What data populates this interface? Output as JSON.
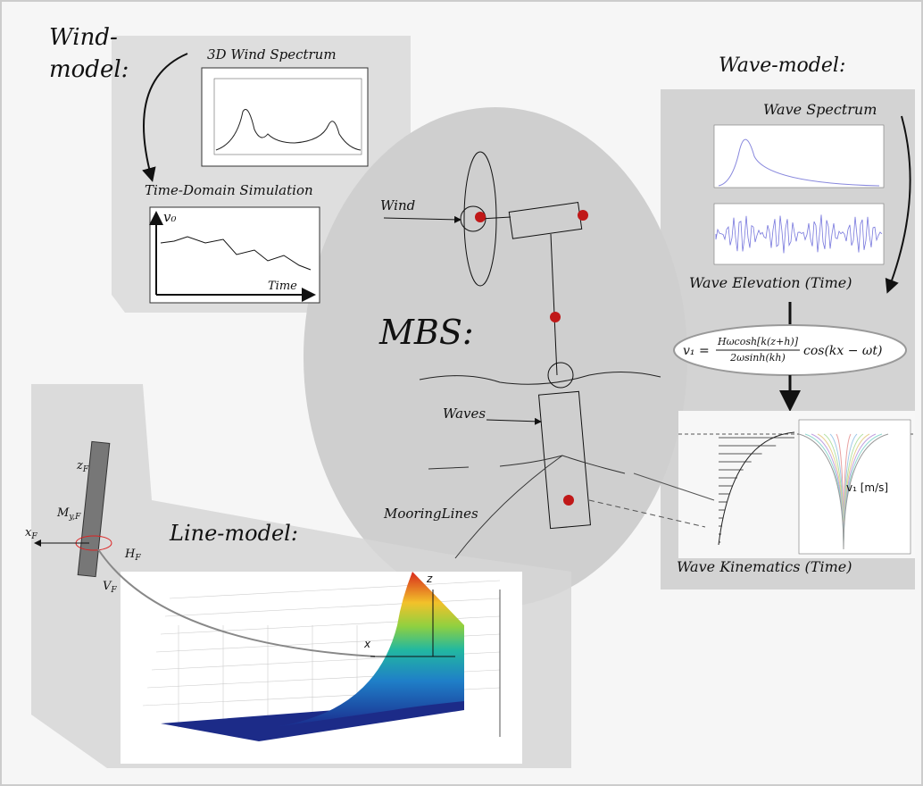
{
  "wind_model": {
    "title_lines": [
      "Wind-",
      "model:"
    ],
    "spectrum_title": "3D Wind Spectrum",
    "time_domain_title": "Time-Domain Simulation",
    "plot_y_label": "v₀",
    "plot_x_label": "Time"
  },
  "wave_model": {
    "title": "Wave-model:",
    "spectrum_title": "Wave Spectrum",
    "elevation_title": "Wave Elevation (Time)",
    "formula": {
      "lhs": "v₁ =",
      "numerator": "Hωcosh[k(z+h)]",
      "denominator": "2ωsinh(kh)",
      "tail": "cos(kx − ωt)"
    },
    "kinematics_title": "Wave Kinematics (Time)",
    "kinematics_axis_label": "v₁ [m/s]"
  },
  "mbs": {
    "title": "MBS:",
    "labels": [
      "Wind",
      "Waves",
      "MooringLines"
    ]
  },
  "line_model": {
    "title": "Line-model:",
    "force_labels": [
      {
        "symbol": "z",
        "sub": "F"
      },
      {
        "symbol": "x",
        "sub": "F"
      },
      {
        "symbol": "M",
        "sub": "y,F"
      },
      {
        "symbol": "H",
        "sub": "F"
      },
      {
        "symbol": "V",
        "sub": "F"
      }
    ],
    "axis_labels": [
      "z",
      "x"
    ]
  }
}
